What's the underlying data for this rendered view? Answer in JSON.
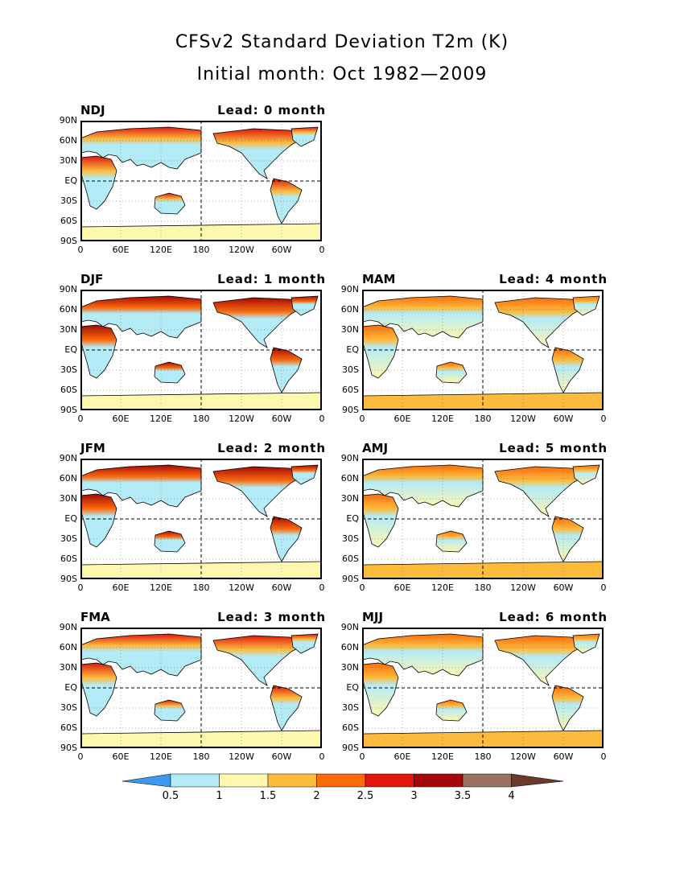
{
  "title": "CFSv2 Standard Deviation T2m (K)",
  "subtitle": "Initial month: Oct 1982—2009",
  "y_axis_labels": [
    "90N",
    "60N",
    "30N",
    "EQ",
    "30S",
    "60S",
    "90S"
  ],
  "x_axis_labels": [
    "0",
    "60E",
    "120E",
    "180",
    "120W",
    "60W",
    "0"
  ],
  "panels": [
    {
      "season": "NDJ",
      "lead": "Lead: 0 month",
      "warmth": 2
    },
    {
      "season": "DJF",
      "lead": "Lead: 1 month",
      "warmth": 3
    },
    {
      "season": "MAM",
      "lead": "Lead: 4 month",
      "warmth": 1
    },
    {
      "season": "JFM",
      "lead": "Lead: 2 month",
      "warmth": 3
    },
    {
      "season": "AMJ",
      "lead": "Lead: 5 month",
      "warmth": 1
    },
    {
      "season": "FMA",
      "lead": "Lead: 3 month",
      "warmth": 2
    },
    {
      "season": "MJJ",
      "lead": "Lead: 6 month",
      "warmth": 1
    }
  ],
  "colorbar": {
    "labels": [
      "0.5",
      "1",
      "1.5",
      "2",
      "2.5",
      "3",
      "3.5",
      "4"
    ],
    "colors": [
      "#3f97f0",
      "#b3ebf7",
      "#fef7ae",
      "#fcbb3c",
      "#fc6b0a",
      "#e1170b",
      "#a50808",
      "#9a7060",
      "#6b3a2b"
    ]
  }
}
